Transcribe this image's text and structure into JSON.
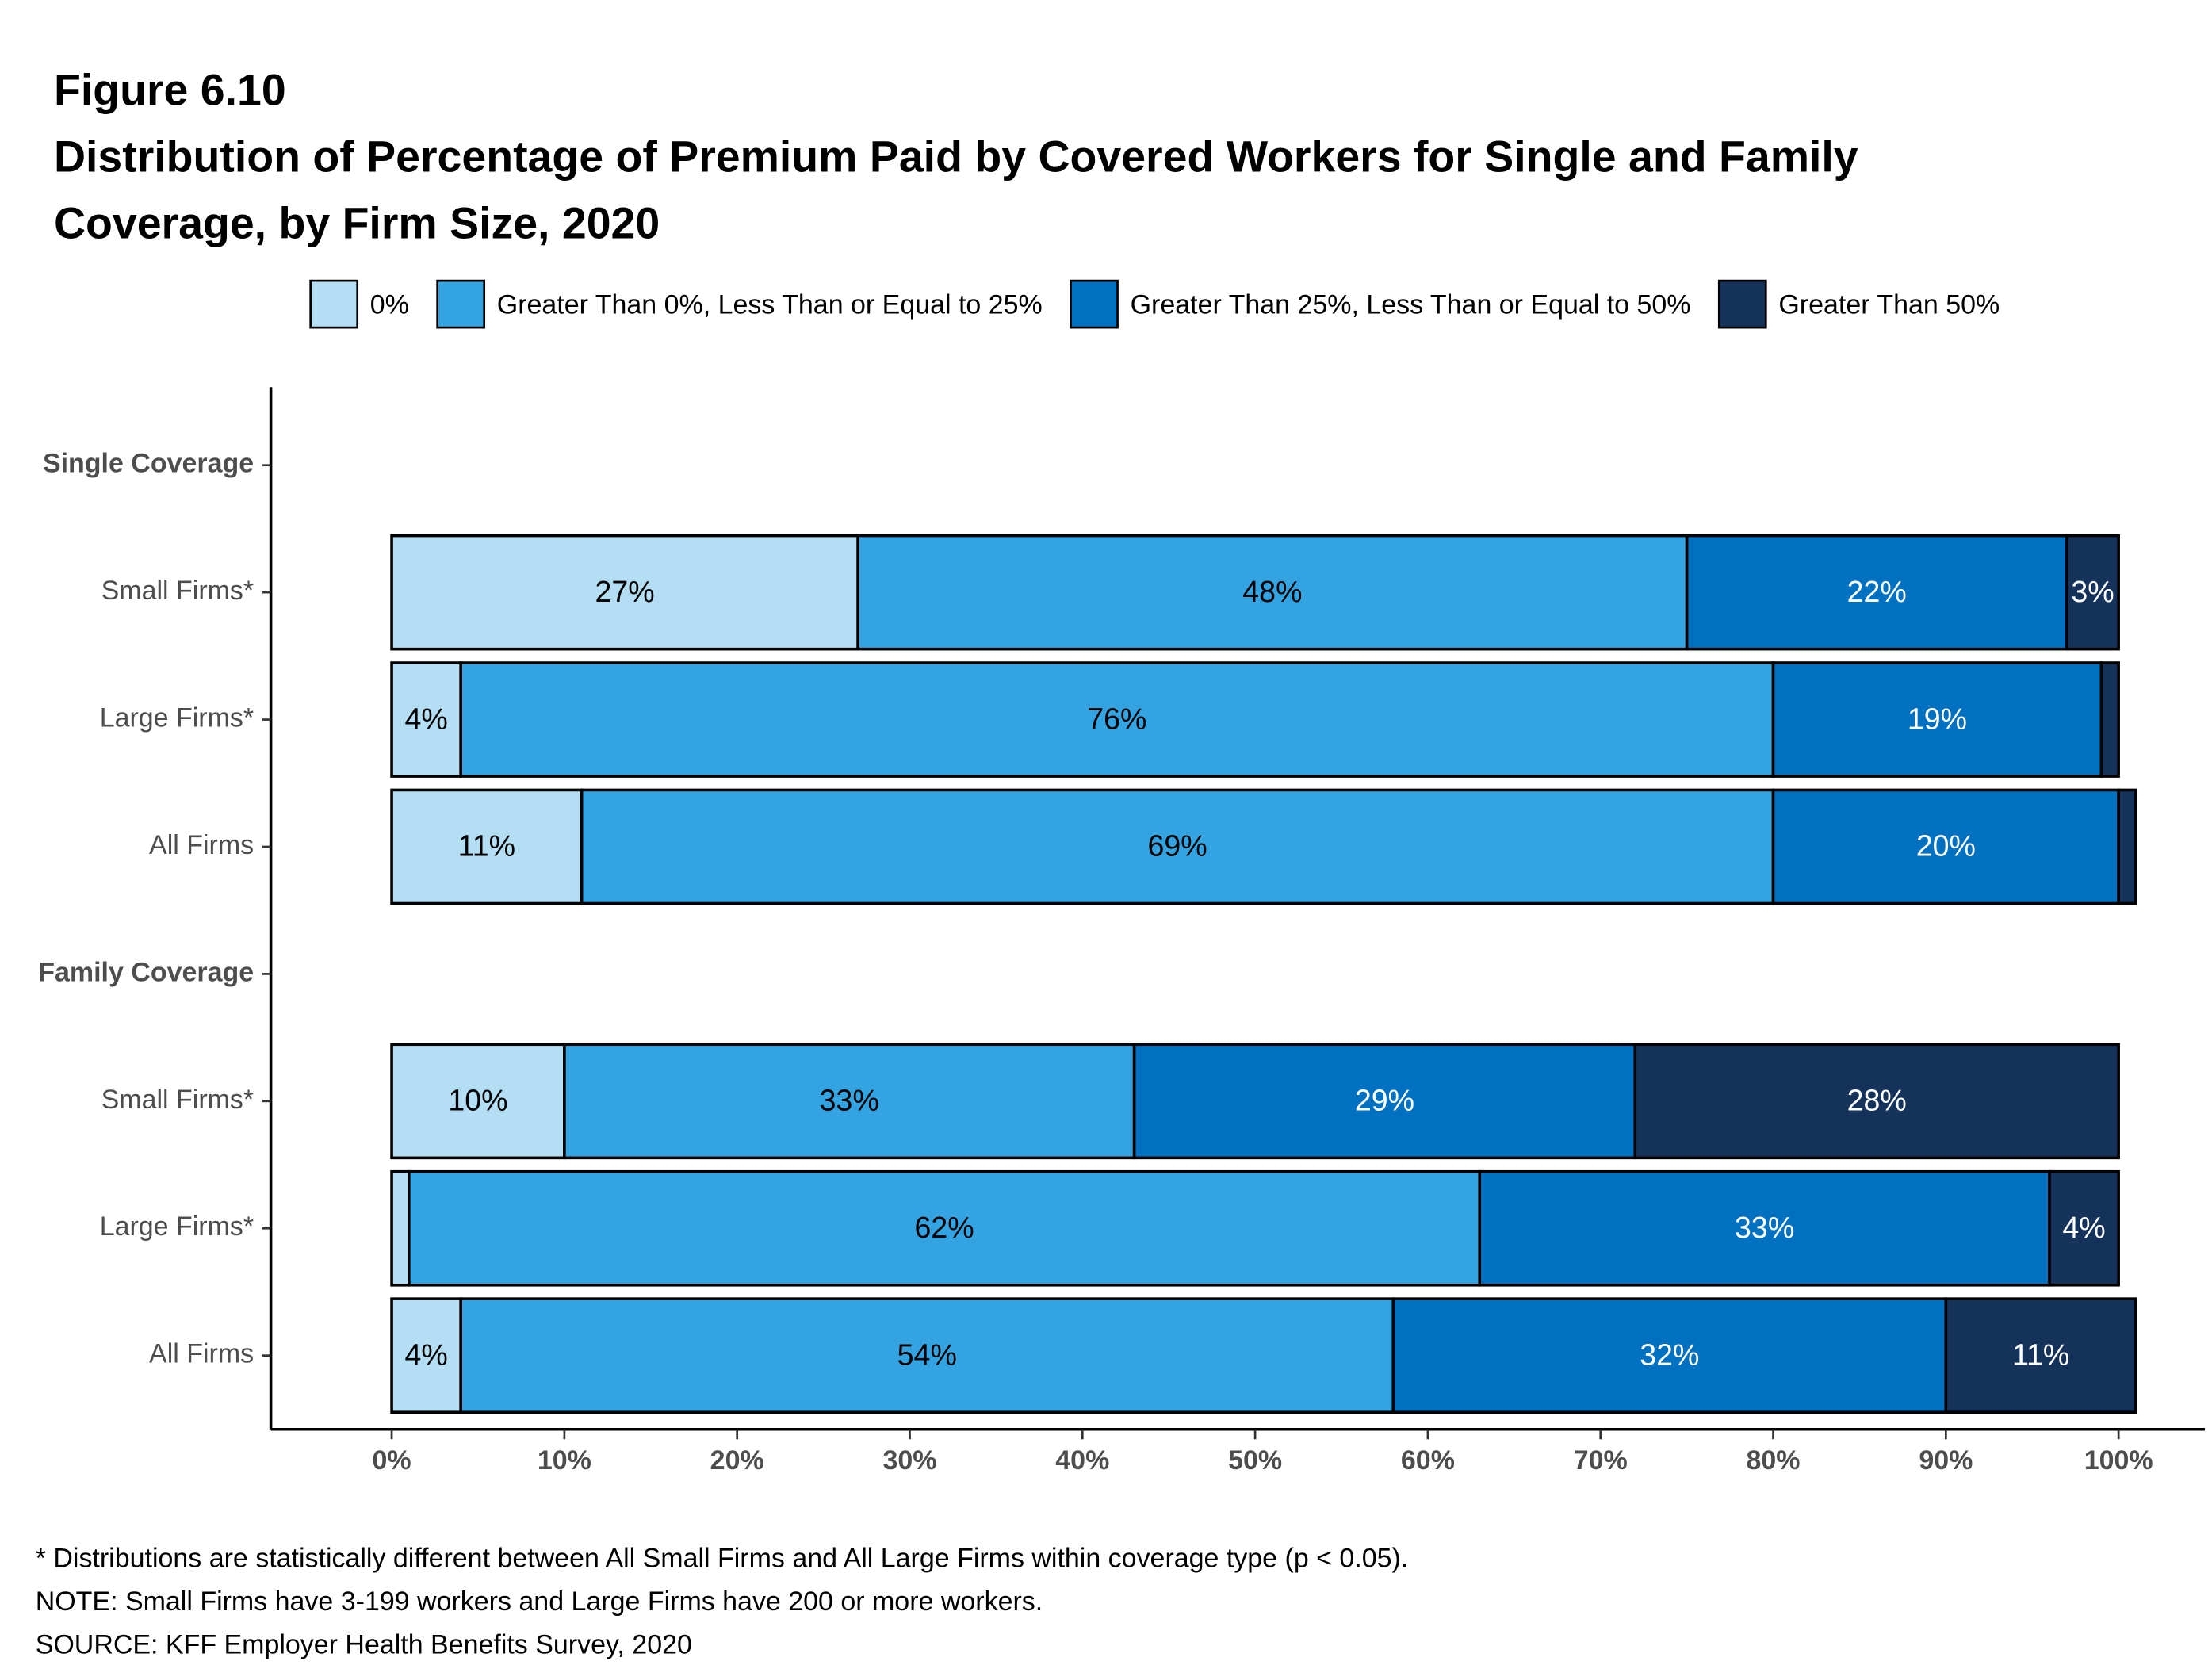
{
  "chart_data": {
    "type": "stacked_barh",
    "title": "Figure 6.10",
    "subtitle": "Distribution of Percentage of Premium Paid by Covered Workers for Single and Family Coverage, by Firm Size, 2020",
    "categories": [
      "Single Coverage",
      "Small Firms*",
      "Large Firms*",
      "All Firms",
      "Family Coverage",
      "Small Firms*",
      "Large Firms*",
      "All Firms"
    ],
    "series": [
      {
        "name": "0%",
        "color": "#b3def3",
        "label_color": "#000000",
        "values": [
          null,
          27,
          4,
          11,
          null,
          10,
          1,
          4
        ],
        "value_labels": [
          null,
          "27%",
          "4%",
          "11%",
          null,
          "10%",
          null,
          "4%"
        ]
      },
      {
        "name": "Greater Than 0%, Less Than or Equal to 25%",
        "color": "#33a4e1",
        "label_color": "#000000",
        "values": [
          null,
          48,
          76,
          69,
          null,
          33,
          62,
          54
        ],
        "value_labels": [
          null,
          "48%",
          "76%",
          "69%",
          null,
          "33%",
          "62%",
          "54%"
        ]
      },
      {
        "name": "Greater Than 25%, Less Than or Equal to 50%",
        "color": "#0070c0",
        "label_color": "#ffffff",
        "values": [
          null,
          22,
          19,
          20,
          null,
          29,
          33,
          32
        ],
        "value_labels": [
          null,
          "22%",
          "19%",
          "20%",
          null,
          "29%",
          "33%",
          "32%"
        ]
      },
      {
        "name": "Greater Than 50%",
        "color": "#14325a",
        "label_color": "#ffffff",
        "values": [
          null,
          3,
          1,
          1,
          null,
          28,
          4,
          11
        ],
        "value_labels": [
          null,
          "3%",
          null,
          null,
          null,
          "28%",
          "4%",
          "11%"
        ]
      }
    ],
    "xlim": [
      -7,
      105
    ],
    "xticks": [
      {
        "value": 0,
        "label": "0%"
      },
      {
        "value": 10,
        "label": "10%"
      },
      {
        "value": 20,
        "label": "20%"
      },
      {
        "value": 30,
        "label": "30%"
      },
      {
        "value": 40,
        "label": "40%"
      },
      {
        "value": 50,
        "label": "50%"
      },
      {
        "value": 60,
        "label": "60%"
      },
      {
        "value": 70,
        "label": "70%"
      },
      {
        "value": 80,
        "label": "80%"
      },
      {
        "value": 90,
        "label": "90%"
      },
      {
        "value": 100,
        "label": "100%"
      }
    ],
    "legend": "top",
    "grid": false,
    "notes": [
      "* Distributions are statistically different between All Small Firms and All Large Firms within coverage type (p < 0.05).",
      "NOTE: Small Firms have 3-199 workers and Large Firms have 200 or more workers.",
      "SOURCE: KFF Employer Health Benefits Survey, 2020"
    ]
  }
}
